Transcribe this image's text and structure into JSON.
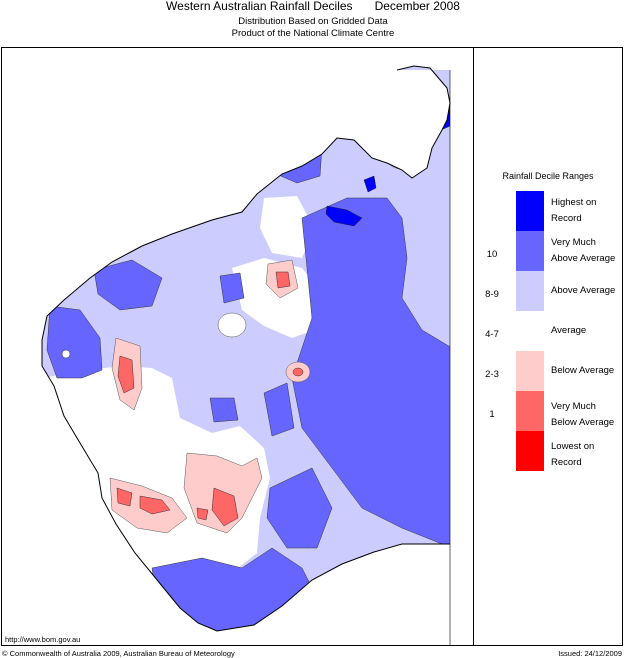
{
  "header": {
    "title": "Western Australian Rainfall Deciles",
    "period": "December 2008",
    "subtitle1": "Distribution Based on Gridded Data",
    "subtitle2": "Product of the National Climate Centre"
  },
  "legend": {
    "title": "Rainfall Decile Ranges",
    "items": [
      {
        "label": "Highest on Record",
        "color": "#0000ff"
      },
      {
        "label": "Very Much Above Average",
        "color": "#6666ff"
      },
      {
        "label": "Above Average",
        "color": "#ccccff"
      },
      {
        "label": "Average",
        "color": "#ffffff"
      },
      {
        "label": "Below Average",
        "color": "#ffcccc"
      },
      {
        "label": "Very Much Below Average",
        "color": "#ff6666"
      },
      {
        "label": "Lowest on Record",
        "color": "#ff0000"
      }
    ],
    "ranges": [
      "10",
      "8-9",
      "4-7",
      "2-3",
      "1"
    ]
  },
  "footer": {
    "url": "http://www.bom.gov.au",
    "copyright": "© Commonwealth of Australia 2009, Australian Bureau of Meteorology",
    "issued": "Issued: 24/12/2009"
  }
}
